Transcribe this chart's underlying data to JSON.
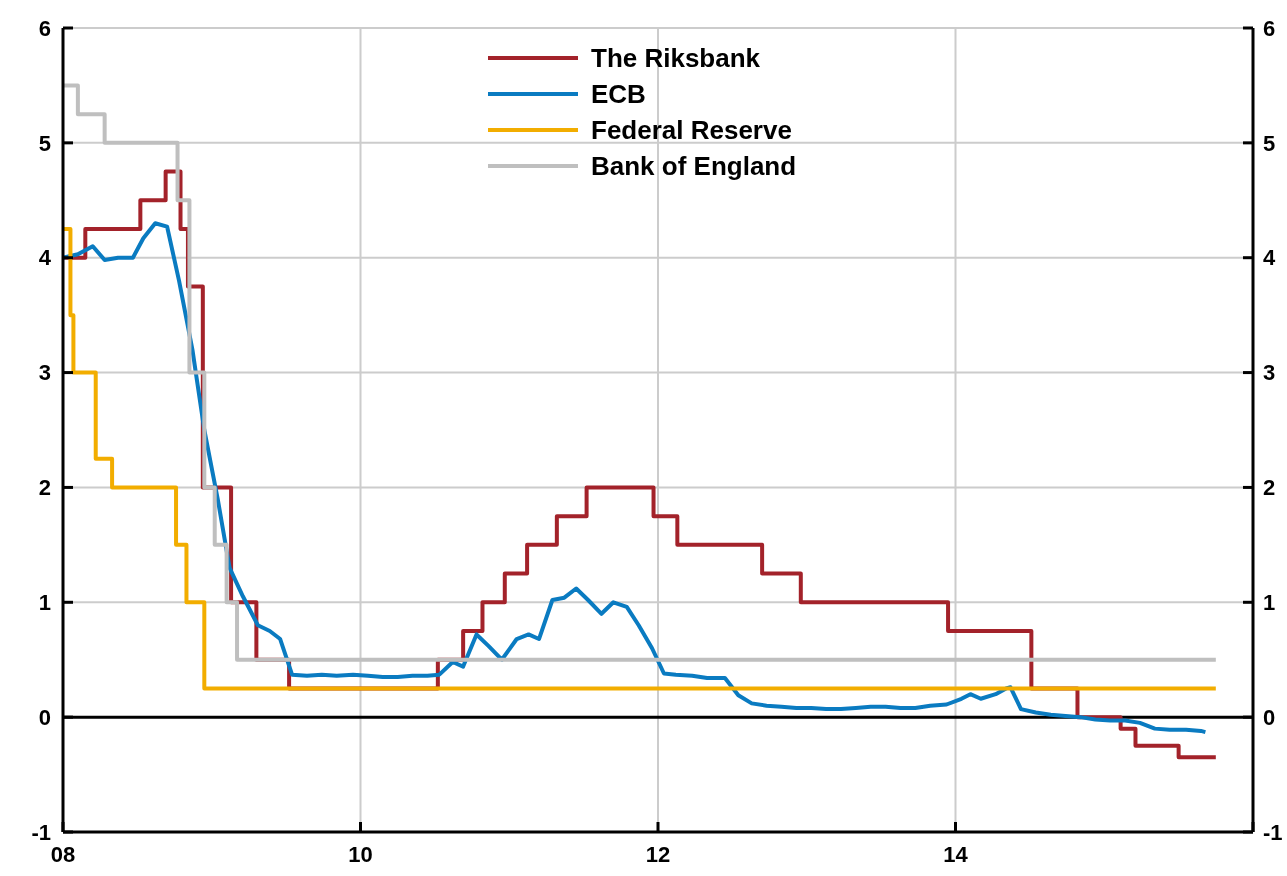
{
  "chart_data": {
    "type": "step",
    "xlim": [
      2008,
      2016
    ],
    "xticks": [
      {
        "value": 2008,
        "label": "08"
      },
      {
        "value": 2010,
        "label": "10"
      },
      {
        "value": 2012,
        "label": "12"
      },
      {
        "value": 2014,
        "label": "14"
      },
      {
        "value": 2016,
        "label": null
      }
    ],
    "ylim": [
      -1,
      6
    ],
    "yticks": [
      -1,
      0,
      1,
      2,
      3,
      4,
      5,
      6
    ],
    "y2lim": [
      -1,
      6
    ],
    "y2ticks": [
      -1,
      0,
      1,
      2,
      3,
      4,
      5,
      6
    ],
    "grid": true,
    "legend": "top",
    "line_style": "solid",
    "ref_lines": [
      {
        "axis": "y",
        "value": 0,
        "color": "#000000"
      }
    ],
    "series": [
      {
        "name": "The Riksbank",
        "color": "#a3222a",
        "x": [
          2008,
          2008.15,
          2008.52,
          2008.69,
          2008.79,
          2008.84,
          2008.94,
          2009.13,
          2009.3,
          2009.52,
          2010.52,
          2010.69,
          2010.82,
          2010.97,
          2011.12,
          2011.32,
          2011.52,
          2011.97,
          2012.13,
          2012.7,
          2012.96,
          2013.95,
          2014.51,
          2014.82,
          2015.11,
          2015.21,
          2015.5,
          2015.75
        ],
        "values": [
          4,
          4.25,
          4.5,
          4.75,
          4.25,
          3.75,
          2,
          1,
          0.5,
          0.25,
          0.5,
          0.75,
          1,
          1.25,
          1.5,
          1.75,
          2,
          1.75,
          1.5,
          1.25,
          1,
          0.75,
          0.25,
          0,
          -0.1,
          -0.25,
          -0.35,
          -0.35
        ]
      },
      {
        "name": "ECB",
        "color": "#0a7bc1",
        "type": "line",
        "x": [
          2008,
          2008.1,
          2008.2,
          2008.28,
          2008.37,
          2008.47,
          2008.54,
          2008.62,
          2008.7,
          2008.78,
          2008.87,
          2008.95,
          2009.04,
          2009.12,
          2009.21,
          2009.31,
          2009.39,
          2009.46,
          2009.54,
          2009.64,
          2009.74,
          2009.84,
          2009.95,
          2010.05,
          2010.15,
          2010.25,
          2010.35,
          2010.45,
          2010.53,
          2010.62,
          2010.69,
          2010.78,
          2010.86,
          2010.95,
          2011.05,
          2011.13,
          2011.2,
          2011.29,
          2011.37,
          2011.45,
          2011.53,
          2011.62,
          2011.7,
          2011.79,
          2011.87,
          2011.96,
          2012.04,
          2012.12,
          2012.23,
          2012.33,
          2012.45,
          2012.54,
          2012.63,
          2012.73,
          2012.83,
          2012.93,
          2013.03,
          2013.13,
          2013.23,
          2013.33,
          2013.43,
          2013.53,
          2013.63,
          2013.73,
          2013.83,
          2013.94,
          2014.04,
          2014.1,
          2014.17,
          2014.27,
          2014.34,
          2014.37,
          2014.44,
          2014.54,
          2014.64,
          2014.74,
          2014.84,
          2014.94,
          2015.04,
          2015.14,
          2015.24,
          2015.34,
          2015.44,
          2015.55,
          2015.65,
          2015.68
        ],
        "values": [
          4,
          4.03,
          4.1,
          3.98,
          4,
          4,
          4.17,
          4.3,
          4.27,
          3.8,
          3.2,
          2.5,
          1.9,
          1.3,
          1.05,
          0.8,
          0.75,
          0.68,
          0.37,
          0.36,
          0.37,
          0.36,
          0.37,
          0.36,
          0.35,
          0.35,
          0.36,
          0.36,
          0.37,
          0.48,
          0.44,
          0.72,
          0.62,
          0.5,
          0.68,
          0.72,
          0.68,
          1.02,
          1.04,
          1.12,
          1.02,
          0.9,
          1,
          0.96,
          0.8,
          0.6,
          0.38,
          0.37,
          0.36,
          0.34,
          0.34,
          0.19,
          0.12,
          0.1,
          0.09,
          0.08,
          0.08,
          0.07,
          0.07,
          0.08,
          0.09,
          0.09,
          0.08,
          0.08,
          0.1,
          0.11,
          0.16,
          0.2,
          0.16,
          0.2,
          0.25,
          0.26,
          0.07,
          0.04,
          0.02,
          0.01,
          0,
          -0.02,
          -0.03,
          -0.03,
          -0.05,
          -0.1,
          -0.11,
          -0.11,
          -0.12,
          -0.13
        ]
      },
      {
        "name": "Federal Reserve",
        "color": "#f2ad00",
        "x": [
          2008,
          2008.05,
          2008.07,
          2008.22,
          2008.33,
          2008.76,
          2008.83,
          2008.95,
          2015.75
        ],
        "values": [
          4.25,
          3.5,
          3,
          2.25,
          2,
          1.5,
          1,
          0.25,
          0.25
        ]
      },
      {
        "name": "Bank of England",
        "color": "#bfbfbf",
        "x": [
          2008,
          2008.1,
          2008.28,
          2008.77,
          2008.85,
          2008.95,
          2009.02,
          2009.1,
          2009.17,
          2015.75
        ],
        "values": [
          5.5,
          5.25,
          5,
          4.5,
          3,
          2,
          1.5,
          1,
          0.5,
          0.5
        ]
      }
    ]
  }
}
